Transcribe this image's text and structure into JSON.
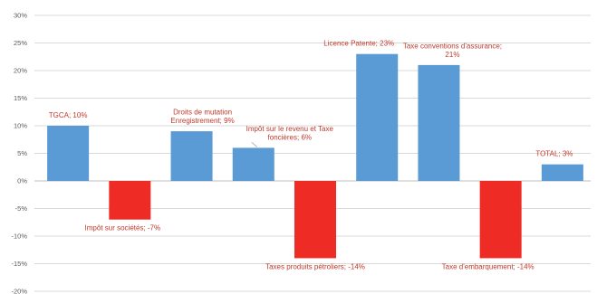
{
  "chart_data": {
    "type": "bar",
    "title": "",
    "xlabel": "",
    "ylabel": "",
    "ylim": [
      -20,
      30
    ],
    "ytick_step": 5,
    "ytick_suffix": "%",
    "grid": true,
    "legend": "none",
    "colors": {
      "positive": "#5b9bd5",
      "negative": "#ee2b24"
    },
    "bars": [
      {
        "category": "TGCA",
        "value": 10,
        "label_lines": [
          "TGCA; 10%"
        ]
      },
      {
        "category": "Impôt sur sociétés",
        "value": -7,
        "label_lines": [
          "Impôt sur sociétés; -7%"
        ]
      },
      {
        "category": "Droits de mutation Enregistrement",
        "value": 9,
        "label_lines": [
          "Droits de mutation",
          "Enregistrement; 9%"
        ]
      },
      {
        "category": "Impôt sur le revenu et Taxe foncières",
        "value": 6,
        "label_lines": [
          "Impôt sur le revenu et Taxe",
          "foncières; 6%"
        ]
      },
      {
        "category": "Taxes produits pétroliers",
        "value": -14,
        "label_lines": [
          "Taxes produits pétroliers; -14%"
        ]
      },
      {
        "category": "Licence Patente",
        "value": 23,
        "label_lines": [
          "Licence Patente; 23%"
        ]
      },
      {
        "category": "Taxe conventions d'assurance",
        "value": 21,
        "label_lines": [
          "Taxe conventions d'assurance;",
          "21%"
        ]
      },
      {
        "category": "Taxe d'embarquement",
        "value": -14,
        "label_lines": [
          "Taxe d'embarquement; -14%"
        ]
      },
      {
        "category": "TOTAL",
        "value": 3,
        "label_lines": [
          "TOTAL; 3%"
        ]
      }
    ]
  }
}
